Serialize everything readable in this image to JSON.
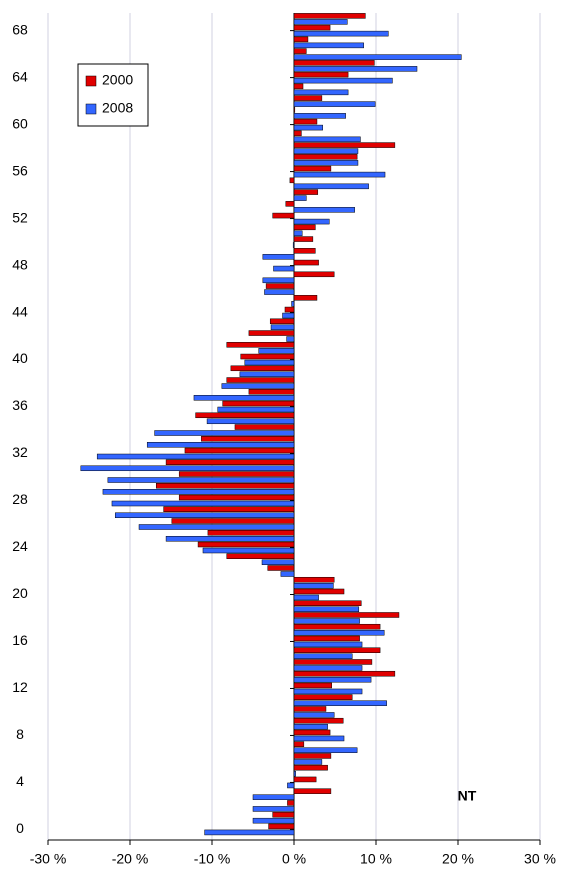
{
  "chart_data": {
    "type": "hbar",
    "annotation": "NT",
    "categories": [
      0,
      1,
      2,
      3,
      4,
      5,
      6,
      7,
      8,
      9,
      10,
      11,
      12,
      13,
      14,
      15,
      16,
      17,
      18,
      19,
      20,
      21,
      22,
      23,
      24,
      25,
      26,
      27,
      28,
      29,
      30,
      31,
      32,
      33,
      34,
      35,
      36,
      37,
      38,
      39,
      40,
      41,
      42,
      43,
      44,
      45,
      46,
      47,
      48,
      49,
      50,
      51,
      52,
      53,
      54,
      55,
      56,
      57,
      58,
      59,
      60,
      61,
      62,
      63,
      64,
      65,
      66,
      67,
      68,
      69
    ],
    "series": [
      {
        "name": "2000",
        "color": "#e00000",
        "values": [
          -3.1,
          -2.6,
          -0.8,
          4.5,
          2.7,
          4.1,
          4.5,
          1.2,
          4.4,
          6,
          3.9,
          7.1,
          4.6,
          12.3,
          9.5,
          10.5,
          8,
          10.5,
          12.8,
          8.2,
          6.1,
          4.9,
          -3.2,
          -8.2,
          -11.7,
          -10.5,
          -14.9,
          -15.9,
          -14,
          -16.8,
          -14,
          -15.6,
          -13.3,
          -11.3,
          -7.2,
          -12,
          -8.7,
          -5.5,
          -8.2,
          -7.7,
          -6.5,
          -8.2,
          -5.5,
          -2.9,
          -1.1,
          2.8,
          -3.4,
          4.9,
          3,
          2.6,
          2.3,
          2.6,
          -2.6,
          -1,
          2.9,
          -0.5,
          4.5,
          7.7,
          12.3,
          0.9,
          2.8,
          0.1,
          3.4,
          1.1,
          6.6,
          9.8,
          1.5,
          1.7,
          4.4,
          8.7
        ]
      },
      {
        "name": "2008",
        "color": "#3366ff",
        "values": [
          -10.9,
          -5,
          -5,
          -5,
          -0.8,
          0.2,
          3.4,
          7.7,
          6.1,
          4.1,
          4.9,
          11.3,
          8.3,
          9.4,
          8.3,
          7.1,
          8.3,
          11,
          8,
          7.9,
          3,
          4.8,
          -1.6,
          -3.9,
          -11.1,
          -15.6,
          -18.9,
          -21.8,
          -22.2,
          -23.3,
          -22.7,
          -26,
          -24,
          -17.9,
          -17,
          -10.6,
          -9.3,
          -12.2,
          -8.8,
          -6.6,
          -6,
          -4.3,
          -0.9,
          -2.8,
          -1.4,
          -0.3,
          -3.6,
          -3.8,
          -2.5,
          -3.8,
          -0.1,
          1,
          4.3,
          7.4,
          1.5,
          9.1,
          11.1,
          7.8,
          7.8,
          8.1,
          3.5,
          6.3,
          9.9,
          6.6,
          12,
          15,
          20.4,
          8.5,
          11.5,
          6.5
        ]
      }
    ],
    "xlim": [
      -30,
      30
    ],
    "xticks": [
      {
        "value": -30,
        "label": "-30 %"
      },
      {
        "value": -20,
        "label": "-20 %"
      },
      {
        "value": -10,
        "label": "-10 %"
      },
      {
        "value": 0,
        "label": "0 %"
      },
      {
        "value": 10,
        "label": "10 %"
      },
      {
        "value": 20,
        "label": "20 %"
      },
      {
        "value": 30,
        "label": "30 %"
      }
    ],
    "ylim": [
      -0.9,
      69.5
    ],
    "yticks": [
      0,
      4,
      8,
      12,
      16,
      20,
      24,
      28,
      32,
      36,
      40,
      44,
      48,
      52,
      56,
      60,
      64,
      68
    ],
    "grid": true,
    "legend": "top-left"
  }
}
